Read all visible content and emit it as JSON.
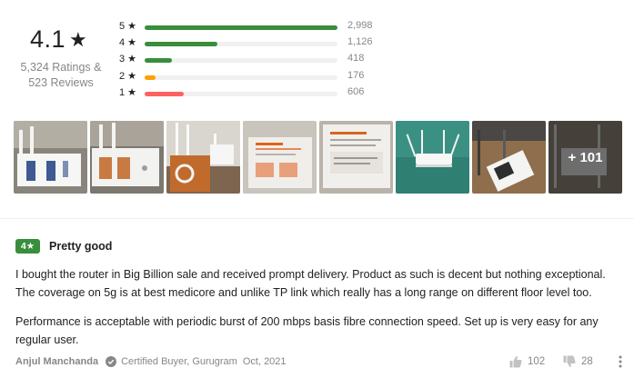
{
  "summary": {
    "average": "4.1",
    "star_glyph": "★",
    "ratings_text": "5,324 Ratings &",
    "reviews_text": "523 Reviews"
  },
  "breakdown": [
    {
      "label": "5 ★",
      "count": "2,998",
      "value": 2998,
      "color": "#388e3c"
    },
    {
      "label": "4 ★",
      "count": "1,126",
      "value": 1126,
      "color": "#388e3c"
    },
    {
      "label": "3 ★",
      "count": "418",
      "value": 418,
      "color": "#388e3c"
    },
    {
      "label": "2 ★",
      "count": "176",
      "value": 176,
      "color": "#ff9f00"
    },
    {
      "label": "1 ★",
      "count": "606",
      "value": 606,
      "color": "#ff6161"
    }
  ],
  "photos": {
    "more_label": "+ 101"
  },
  "review": {
    "rating": "4★",
    "rating_color": "#388e3c",
    "title": "Pretty good",
    "paragraph_1": "I bought the router in Big Billion sale and received prompt delivery. Product as such is decent but nothing exceptional. The coverage on 5g is at best medicore and unlike TP link which really has a long range on different floor level too.",
    "paragraph_2": "Performance is acceptable with periodic burst of 200 mbps basis fibre connection speed. Set up is very easy for any regular user.",
    "author": "Anjul Manchanda",
    "certified": "Certified Buyer, Gurugram",
    "date": "Oct, 2021",
    "likes": "102",
    "dislikes": "28"
  }
}
